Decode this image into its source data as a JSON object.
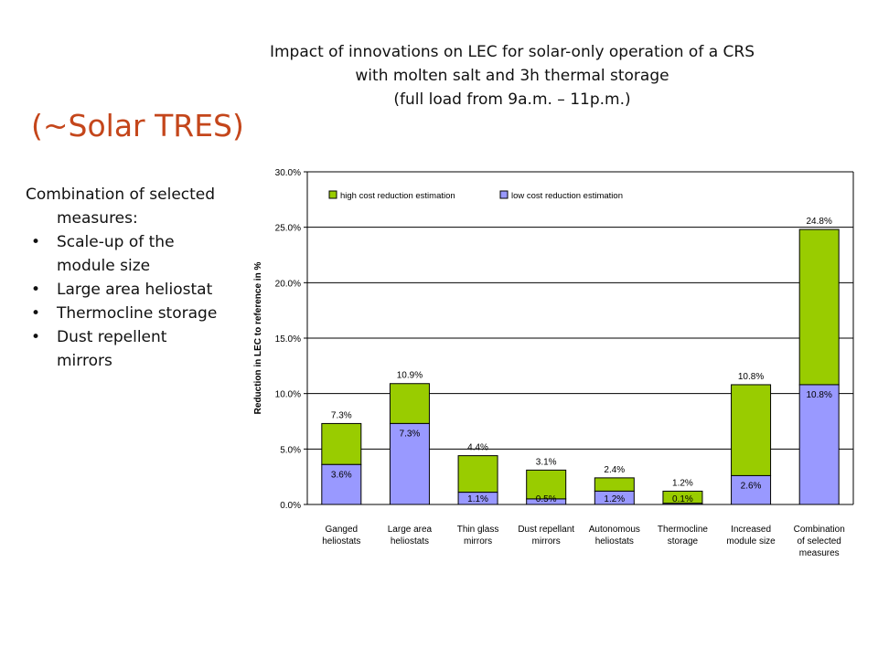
{
  "slide": {
    "title_lines": [
      "Impact of innovations on LEC for solar-only operation of a CRS",
      "with molten salt and 3h thermal storage",
      "(full load from 9a.m. – 11p.m.)"
    ],
    "side_heading": "(~Solar TRES)",
    "side_intro": "Combination of selected measures:",
    "side_bullet_char": "•",
    "side_bullets": [
      "Scale-up of the module size",
      "Large area heliostat",
      "Thermocline storage",
      "Dust repellent mirrors"
    ]
  },
  "chart_data": {
    "type": "bar",
    "stacked": true,
    "ylabel": "Reduction in LEC to reference in %",
    "ylim": [
      0,
      30
    ],
    "yticks": [
      "0.0%",
      "5.0%",
      "10.0%",
      "15.0%",
      "20.0%",
      "25.0%",
      "30.0%"
    ],
    "grid": true,
    "legend_position": "top",
    "categories": [
      [
        "Ganged",
        "heliostats"
      ],
      [
        "Large area",
        "heliostats"
      ],
      [
        "Thin glass",
        "mirrors"
      ],
      [
        "Dust repellant",
        "mirrors"
      ],
      [
        "Autonomous",
        "heliostats"
      ],
      [
        "Thermocline",
        "storage"
      ],
      [
        "Increased",
        "module size"
      ],
      [
        "Combination",
        "of selected",
        "measures"
      ]
    ],
    "series": [
      {
        "name": "low cost reduction estimation",
        "color": "#9999ff",
        "values": [
          3.6,
          7.3,
          1.1,
          0.5,
          1.2,
          0.1,
          2.6,
          10.8
        ],
        "labels": [
          "3.6%",
          "7.3%",
          "1.1%",
          "0.5%",
          "1.2%",
          "0.1%",
          "2.6%",
          "10.8%"
        ]
      },
      {
        "name": "high cost reduction estimation",
        "color": "#99cc00",
        "total_values": [
          7.3,
          10.9,
          4.4,
          3.1,
          2.4,
          1.2,
          10.8,
          24.8
        ],
        "labels": [
          "7.3%",
          "10.9%",
          "4.4%",
          "3.1%",
          "2.4%",
          "1.2%",
          "10.8%",
          "24.8%"
        ]
      }
    ]
  }
}
